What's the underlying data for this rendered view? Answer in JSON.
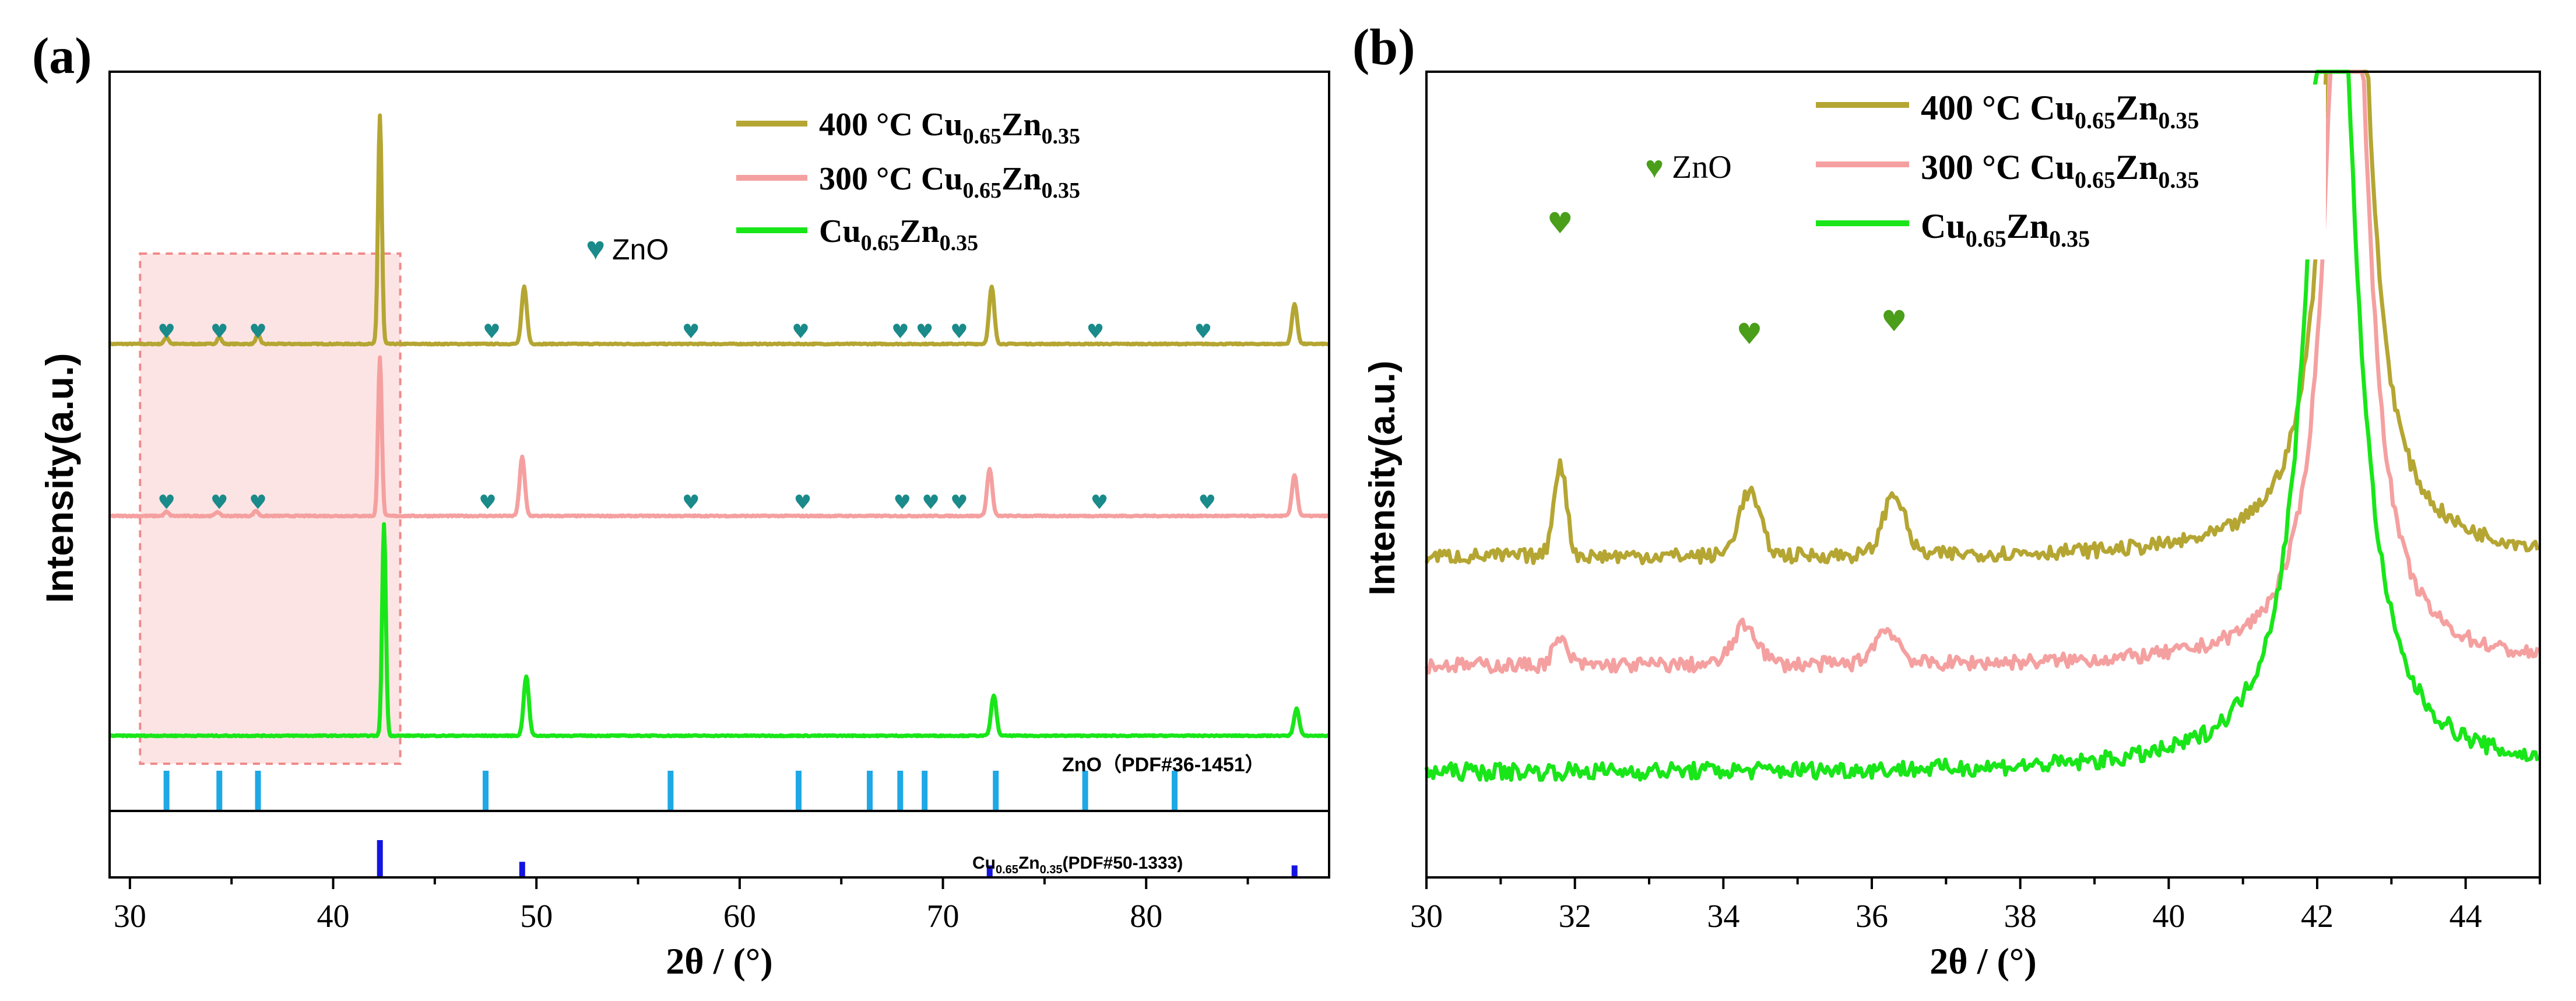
{
  "panel_a": {
    "label": "(a)",
    "ylabel": "Intensity(a.u.)",
    "xlabel": "2θ / (°)",
    "xticks": [
      "30",
      "40",
      "50",
      "60",
      "70",
      "80"
    ],
    "legend": [
      {
        "temp": "400 °C ",
        "cu": "Cu",
        "cu_sub": "0.65",
        "zn": "Zn",
        "zn_sub": "0.35",
        "color": "#b5a633"
      },
      {
        "temp": "300 °C ",
        "cu": "Cu",
        "cu_sub": "0.65",
        "zn": "Zn",
        "zn_sub": "0.35",
        "color": "#f5a0a0"
      },
      {
        "temp": "",
        "cu": "Cu",
        "cu_sub": "0.65",
        "zn": "Zn",
        "zn_sub": "0.35",
        "color": "#19e619"
      }
    ],
    "marker_label": "ZnO",
    "ref_zno": "ZnO（PDF#36-1451）",
    "ref_cuzn": {
      "cu": "Cu",
      "cu_sub": "0.65",
      "zn": "Zn",
      "zn_sub": "0.35",
      "suffix": "(PDF#50-1333)"
    }
  },
  "panel_b": {
    "label": "(b)",
    "ylabel": "Intensity(a.u.)",
    "xlabel": "2θ / (°)",
    "xticks": [
      "30",
      "32",
      "34",
      "36",
      "38",
      "40",
      "42",
      "44"
    ],
    "marker_label": "ZnO",
    "legend": [
      {
        "temp": "400 °C ",
        "cu": "Cu",
        "cu_sub": "0.65",
        "zn": "Zn",
        "zn_sub": "0.35",
        "color": "#b5a633"
      },
      {
        "temp": "300 °C ",
        "cu": "Cu",
        "cu_sub": "0.65",
        "zn": "Zn",
        "zn_sub": "0.35",
        "color": "#f5a0a0"
      },
      {
        "temp": "",
        "cu": "Cu",
        "cu_sub": "0.65",
        "zn": "Zn",
        "zn_sub": "0.35",
        "color": "#19e619"
      }
    ]
  },
  "colors": {
    "s400": "#b5a633",
    "s300": "#f5a0a0",
    "s25": "#19e619",
    "marker": "#1a8a8a",
    "marker_b": "#4a9e1a",
    "ref_zno": "#1ea8e6",
    "ref_cuzn": "#1414e0",
    "highlight": "#fde4e4"
  },
  "chart_data": [
    {
      "type": "line",
      "title": "(a)",
      "xlabel": "2θ / (°)",
      "ylabel": "Intensity(a.u.)",
      "xlim": [
        29,
        89
      ],
      "series": [
        {
          "name": "400 °C Cu0.65Zn0.35",
          "baseline": 5.3,
          "peaks": [
            [
              42.3,
              4.0
            ],
            [
              49.4,
              1.0
            ],
            [
              72.4,
              1.0
            ],
            [
              87.3,
              0.7
            ],
            [
              31.8,
              0.12
            ],
            [
              34.4,
              0.12
            ],
            [
              36.3,
              0.16
            ]
          ]
        },
        {
          "name": "300 °C Cu0.65Zn0.35",
          "baseline": 3.0,
          "peaks": [
            [
              42.3,
              2.7
            ],
            [
              49.3,
              1.0
            ],
            [
              72.3,
              0.8
            ],
            [
              87.3,
              0.7
            ],
            [
              31.8,
              0.07
            ],
            [
              34.3,
              0.07
            ],
            [
              36.2,
              0.09
            ]
          ]
        },
        {
          "name": "Cu0.65Zn0.35",
          "baseline": 0.0,
          "peaks": [
            [
              42.5,
              3.9
            ],
            [
              49.5,
              1.1
            ],
            [
              72.5,
              0.75
            ],
            [
              87.4,
              0.5
            ]
          ]
        }
      ],
      "zno_markers_400": [
        31.8,
        34.4,
        36.3,
        47.8,
        57.6,
        63.0,
        67.9,
        69.1,
        70.8,
        77.5,
        82.8
      ],
      "zno_markers_300": [
        31.8,
        34.4,
        36.3,
        47.6,
        57.6,
        63.1,
        68.0,
        69.4,
        70.8,
        77.7,
        83.0
      ],
      "reference_zno_pdf_36_1451": [
        31.8,
        34.4,
        36.3,
        47.5,
        56.6,
        62.9,
        66.4,
        67.9,
        69.1,
        72.6,
        77.0,
        81.4
      ],
      "reference_cu0.65zn0.35_pdf_50_1333": [
        [
          42.3,
          1.0
        ],
        [
          49.3,
          0.4
        ],
        [
          72.3,
          0.3
        ],
        [
          87.3,
          0.3
        ]
      ],
      "highlight_region": [
        30.5,
        43.3
      ]
    },
    {
      "type": "line",
      "title": "(b)",
      "xlabel": "2θ / (°)",
      "ylabel": "Intensity(a.u.)",
      "xlim": [
        30,
        45
      ],
      "series": [
        {
          "name": "400 °C Cu0.65Zn0.35",
          "baseline": 4.5,
          "peaks": [
            [
              31.8,
              3.8
            ],
            [
              34.35,
              2.6
            ],
            [
              36.3,
              2.5
            ]
          ]
        },
        {
          "name": "300 °C Cu0.65Zn0.35",
          "baseline": 2.7,
          "peaks": [
            [
              31.8,
              1.0
            ],
            [
              34.3,
              1.6
            ],
            [
              36.2,
              1.4
            ]
          ]
        },
        {
          "name": "Cu0.65Zn0.35",
          "baseline": 1.0,
          "peaks": []
        }
      ],
      "zno_markers": [
        31.8,
        34.35,
        36.3
      ]
    }
  ]
}
